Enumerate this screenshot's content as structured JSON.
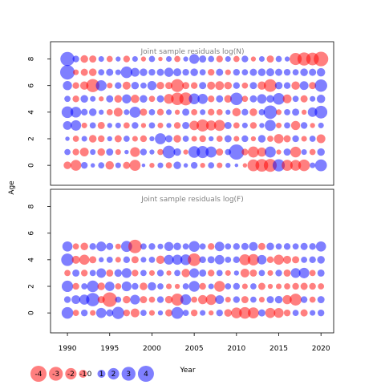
{
  "chart_data": [
    {
      "type": "scatter",
      "subtype": "bubble",
      "title": "Joint sample residuals log(N)",
      "ylabel": "Age",
      "xlabel": "Year",
      "ages": [
        0,
        1,
        2,
        3,
        4,
        5,
        6,
        7,
        8
      ],
      "years": [
        1990,
        1991,
        1992,
        1993,
        1994,
        1995,
        1996,
        1997,
        1998,
        1999,
        2000,
        2001,
        2002,
        2003,
        2004,
        2005,
        2006,
        2007,
        2008,
        2009,
        2010,
        2011,
        2012,
        2013,
        2014,
        2015,
        2016,
        2017,
        2018,
        2019,
        2020
      ],
      "xlim": [
        1988,
        2021.5
      ],
      "ylim": [
        -1.5,
        9.3
      ],
      "yticks": [
        0,
        2,
        4,
        6,
        8
      ],
      "residuals": [
        [
          -0.9,
          -1.8,
          0.7,
          0.3,
          0.6,
          -1.1,
          0.5,
          -0.8,
          -1.9,
          0.2,
          -0.4,
          0.5,
          -0.6,
          0.9,
          0.3,
          0.7,
          -0.4,
          0.6,
          -0.5,
          0.4,
          0.2,
          -0.3,
          -2.2,
          -2.5,
          -2.6,
          2.3,
          -1.9,
          -1.8,
          -2.1,
          0.5,
          2.2
        ],
        [
          0.6,
          -0.7,
          -1.2,
          0.5,
          -0.9,
          0.8,
          -0.5,
          0.3,
          -1.5,
          0.7,
          0.4,
          -0.6,
          2.5,
          0.9,
          -0.4,
          2.1,
          2.3,
          1.9,
          -0.8,
          0.6,
          3.6,
          -0.7,
          -1.9,
          -1.3,
          1.9,
          -0.4,
          0.8,
          -1.8,
          0.5,
          -0.6,
          0.9
        ],
        [
          0.3,
          -0.6,
          0.5,
          -0.9,
          -0.7,
          0.4,
          -0.8,
          0.6,
          -0.5,
          -0.7,
          0.4,
          1.9,
          0.8,
          -0.9,
          0.6,
          -0.5,
          -0.7,
          0.4,
          -0.6,
          0.8,
          -0.5,
          0.7,
          -0.4,
          0.9,
          -0.6,
          -1.4,
          -0.8,
          0.7,
          -0.5,
          0.6,
          -1.2
        ],
        [
          1.2,
          1.7,
          -0.5,
          0.6,
          -0.8,
          0.4,
          0.5,
          -0.6,
          0.7,
          -0.4,
          0.6,
          -0.5,
          0.4,
          -0.7,
          0.8,
          -1.4,
          -2.3,
          -1.6,
          -1.9,
          0.8,
          -0.6,
          0.5,
          -0.7,
          0.4,
          1.9,
          -0.5,
          0.6,
          -1.3,
          0.7,
          -0.4,
          0.5
        ],
        [
          2.1,
          1.8,
          0.7,
          0.9,
          0.4,
          -0.6,
          -1.2,
          0.5,
          1.9,
          -0.8,
          0.6,
          -0.7,
          0.5,
          -0.4,
          0.8,
          -0.6,
          0.5,
          -0.7,
          -0.6,
          0.4,
          -1.1,
          0.7,
          -0.9,
          0.6,
          2.8,
          -0.5,
          0.6,
          0.8,
          -0.4,
          1.4,
          2.5
        ],
        [
          0.6,
          -0.7,
          0.9,
          0.5,
          -0.4,
          0.8,
          -0.9,
          1.3,
          -1.1,
          0.9,
          -0.6,
          0.8,
          -1.5,
          -2.4,
          -2.6,
          1.8,
          1.6,
          -0.7,
          0.8,
          -0.9,
          2.4,
          -0.6,
          0.8,
          1.4,
          0.9,
          2.1,
          -1.2,
          0.6,
          -0.8,
          0.5,
          1.1
        ],
        [
          1.3,
          -0.7,
          -1.1,
          -2.7,
          1.8,
          -0.5,
          0.7,
          -1.0,
          0.9,
          0.6,
          1.3,
          -0.9,
          -0.8,
          -2.6,
          -0.8,
          -0.7,
          0.8,
          -1.0,
          -1.2,
          -0.9,
          0.7,
          -0.6,
          0.8,
          -1.1,
          -2.5,
          0.9,
          0.7,
          -1.1,
          1.2,
          -0.8,
          2.4
        ],
        [
          3.3,
          -0.5,
          -0.8,
          -0.9,
          0.6,
          0.8,
          0.5,
          2.1,
          1.2,
          0.9,
          0.7,
          0.8,
          1.3,
          1.0,
          0.7,
          0.9,
          0.6,
          -0.7,
          0.8,
          -0.5,
          0.7,
          0.6,
          0.8,
          0.9,
          1.0,
          0.8,
          0.7,
          0.6,
          0.9,
          0.8,
          1.1
        ],
        [
          3.1,
          0.7,
          -0.9,
          -0.8,
          0.5,
          -0.6,
          0.4,
          -0.7,
          0.5,
          -0.4,
          0.6,
          -0.3,
          0.5,
          -0.6,
          0.4,
          1.5,
          0.8,
          0.6,
          -0.7,
          0.5,
          -0.6,
          0.7,
          -0.4,
          0.5,
          -0.8,
          0.6,
          0.4,
          -2.3,
          -2.7,
          -2.5,
          -3.3
        ]
      ]
    },
    {
      "type": "scatter",
      "subtype": "bubble",
      "title": "Joint sample residuals log(F)",
      "ylabel": "Age",
      "xlabel": "Year",
      "ages": [
        0,
        1,
        2,
        3,
        4,
        5
      ],
      "years": [
        1990,
        1991,
        1992,
        1993,
        1994,
        1995,
        1996,
        1997,
        1998,
        1999,
        2000,
        2001,
        2002,
        2003,
        2004,
        2005,
        2006,
        2007,
        2008,
        2009,
        2010,
        2011,
        2012,
        2013,
        2014,
        2015,
        2016,
        2017,
        2018,
        2019,
        2020
      ],
      "xlim": [
        1988,
        2021.5
      ],
      "ylim": [
        -1.5,
        9.3
      ],
      "xticks": [
        1990,
        1995,
        2000,
        2005,
        2010,
        2015,
        2020
      ],
      "yticks": [
        0,
        2,
        4,
        6,
        8
      ],
      "residuals": [
        [
          2.1,
          -0.6,
          0.7,
          -0.5,
          1.6,
          0.8,
          2.3,
          -0.7,
          -1.2,
          0.6,
          -0.5,
          0.4,
          -0.8,
          2.2,
          0.6,
          -0.7,
          0.5,
          -0.4,
          0.7,
          -0.9,
          -1.8,
          -2.1,
          -1.9,
          0.8,
          -1.6,
          -1.5,
          -0.7,
          0.6,
          -0.8,
          0.5,
          0.7
        ],
        [
          0.7,
          1.2,
          1.6,
          2.8,
          -0.8,
          -3.3,
          0.6,
          -0.9,
          1.5,
          -0.8,
          -0.6,
          0.7,
          -0.9,
          -2.3,
          1.8,
          -0.6,
          -1.3,
          -1.8,
          1.2,
          -0.5,
          0.7,
          -0.8,
          0.6,
          -0.5,
          0.8,
          0.9,
          -1.3,
          -2.2,
          0.7,
          -0.6,
          0.8
        ],
        [
          2.0,
          -0.7,
          0.6,
          2.1,
          -0.9,
          1.4,
          -0.6,
          1.5,
          0.7,
          -0.9,
          1.1,
          0.6,
          -0.5,
          -0.4,
          0.6,
          1.8,
          -0.7,
          0.5,
          -1.8,
          0.6,
          0.7,
          -0.5,
          0.6,
          -0.8,
          -0.4,
          -0.5,
          -0.6,
          -0.7,
          -0.8,
          -0.7,
          -0.6
        ],
        [
          -0.6,
          0.8,
          -0.7,
          0.6,
          1.4,
          -0.8,
          0.9,
          1.5,
          -0.7,
          0.6,
          -0.5,
          0.7,
          -0.4,
          0.6,
          -1.1,
          1.4,
          0.8,
          -0.7,
          0.6,
          -0.5,
          0.4,
          -1.2,
          -0.8,
          0.6,
          -0.5,
          0.7,
          -0.8,
          1.5,
          1.7,
          -0.6,
          0.8
        ],
        [
          2.4,
          -1.0,
          -1.6,
          -0.8,
          0.4,
          0.6,
          -0.5,
          0.7,
          -0.8,
          0.5,
          0.6,
          -1.1,
          1.5,
          1.6,
          1.8,
          -2.5,
          0.7,
          0.8,
          1.4,
          0.6,
          0.7,
          -1.9,
          -2.0,
          1.4,
          -0.7,
          -1.6,
          -1.0,
          -0.8,
          0.6,
          0.7,
          0.9
        ],
        [
          1.6,
          -0.6,
          -0.9,
          0.7,
          1.5,
          0.8,
          -0.5,
          1.9,
          -2.8,
          0.6,
          0.7,
          0.5,
          1.3,
          0.9,
          0.6,
          1.8,
          0.6,
          -0.7,
          1.4,
          0.6,
          0.7,
          0.8,
          1.2,
          -0.8,
          0.9,
          0.6,
          0.7,
          0.6,
          0.8,
          0.7,
          1.6
        ]
      ]
    }
  ],
  "legend": {
    "values": [
      -4,
      -3,
      -2,
      -1,
      0,
      1,
      2,
      3,
      4
    ],
    "labels": [
      "-4",
      "-3",
      "-2",
      "-1",
      "0",
      "1",
      "2",
      "3",
      "4"
    ]
  },
  "colors": {
    "positive": "#0000ff",
    "negative": "#ff0000",
    "alpha": 0.5
  }
}
